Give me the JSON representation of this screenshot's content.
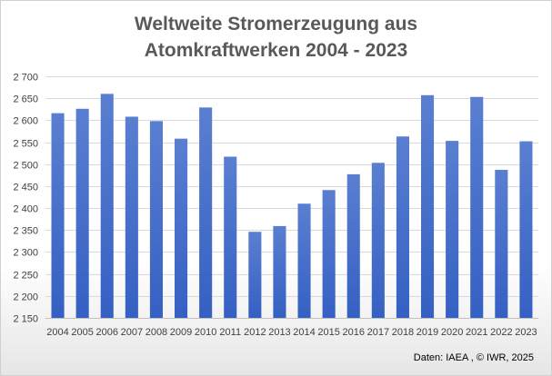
{
  "chart_data": {
    "type": "bar",
    "title_line1": "Weltweite Stromerzeugung aus",
    "title_line2": "Atomkraftwerken 2004 - 2023",
    "categories": [
      "2004",
      "2005",
      "2006",
      "2007",
      "2008",
      "2009",
      "2010",
      "2011",
      "2012",
      "2013",
      "2014",
      "2015",
      "2016",
      "2017",
      "2018",
      "2019",
      "2020",
      "2021",
      "2022",
      "2023"
    ],
    "values": [
      2616,
      2626,
      2660,
      2608,
      2598,
      2558,
      2629,
      2517,
      2346,
      2359,
      2410,
      2441,
      2477,
      2503,
      2563,
      2657,
      2553,
      2653,
      2487,
      2552
    ],
    "ylim": [
      2150,
      2700
    ],
    "yticks": [
      2150,
      2200,
      2250,
      2300,
      2350,
      2400,
      2450,
      2500,
      2550,
      2600,
      2650,
      2700
    ],
    "ytick_labels": [
      "2 150",
      "2 200",
      "2 250",
      "2 300",
      "2 350",
      "2 400",
      "2 450",
      "2 500",
      "2 550",
      "2 600",
      "2 650",
      "2 700"
    ],
    "grid": true,
    "bar_color_top": "#5a7fd1",
    "bar_color_bottom": "#3560c3",
    "source": "Daten: IAEA , © IWR, 2025"
  }
}
